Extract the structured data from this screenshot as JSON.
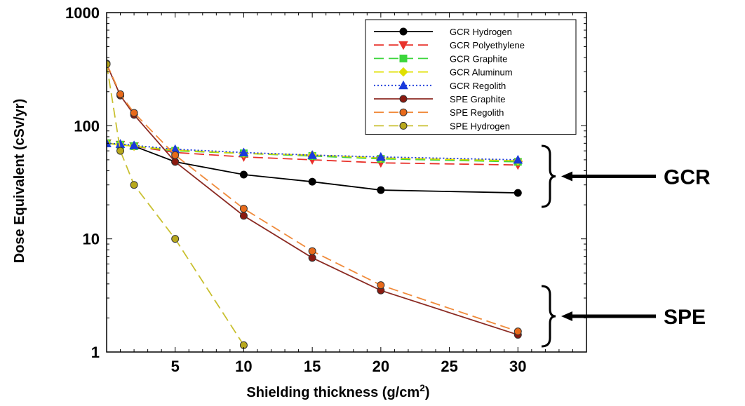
{
  "chart_data": {
    "type": "line",
    "xlabel": "Shielding thickness (g/cm",
    "xlabel_sup": "2",
    "xlabel_end": ")",
    "ylabel": "Dose Equivalent (cSv/yr)",
    "xlim": [
      0,
      35
    ],
    "ylim": [
      1,
      1000
    ],
    "yscale": "log",
    "xticks": [
      5,
      10,
      15,
      20,
      25,
      30
    ],
    "xtick_labels": [
      "5",
      "10",
      "15",
      "20",
      "25",
      "30"
    ],
    "yticks": [
      1,
      10,
      100,
      1000
    ],
    "ytick_labels": [
      "1",
      "10",
      "100",
      "1000"
    ],
    "legend_position": "top-right",
    "series": [
      {
        "name": "GCR Hydrogen",
        "color": "#000000",
        "dash": "solid",
        "marker": "circle",
        "x": [
          0,
          1,
          2,
          5,
          10,
          15,
          20,
          30
        ],
        "y": [
          70,
          68,
          66,
          48,
          37,
          32,
          27,
          25.5
        ]
      },
      {
        "name": "GCR Polyethylene",
        "color": "#e8322b",
        "dash": "dashed",
        "marker": "triangle-down",
        "x": [
          0,
          1,
          2,
          5,
          10,
          15,
          20,
          30
        ],
        "y": [
          70,
          68,
          66,
          58,
          53,
          50,
          47,
          45
        ]
      },
      {
        "name": "GCR Graphite",
        "color": "#3cd63c",
        "dash": "dashed",
        "marker": "square",
        "x": [
          0,
          1,
          2,
          5,
          10,
          15,
          20,
          30
        ],
        "y": [
          70,
          68,
          66,
          60,
          57,
          54,
          51,
          48
        ]
      },
      {
        "name": "GCR Aluminum",
        "color": "#e0e000",
        "dash": "dashed",
        "marker": "diamond",
        "x": [
          0,
          1,
          2,
          5,
          10,
          15,
          20,
          30
        ],
        "y": [
          70,
          68,
          66,
          61,
          57,
          55,
          52,
          49
        ]
      },
      {
        "name": "GCR Regolith",
        "color": "#1a3adb",
        "dash": "dotted",
        "marker": "triangle-up",
        "x": [
          0,
          1,
          2,
          5,
          10,
          15,
          20,
          30
        ],
        "y": [
          70,
          69,
          67,
          62,
          58,
          55,
          53,
          50
        ]
      },
      {
        "name": "SPE Graphite",
        "color": "#8b2a22",
        "dash": "solid",
        "marker": "circle",
        "markerFill": "#8b1a10",
        "x": [
          0,
          1,
          2,
          5,
          10,
          15,
          20,
          30
        ],
        "y": [
          350,
          185,
          125,
          48,
          16,
          6.8,
          3.5,
          1.42
        ]
      },
      {
        "name": "SPE Regolith",
        "color": "#f08a3a",
        "dash": "dashed",
        "marker": "circle",
        "markerFill": "#e86a1a",
        "x": [
          0,
          1,
          2,
          5,
          10,
          15,
          20,
          30
        ],
        "y": [
          355,
          190,
          130,
          55,
          18.5,
          7.8,
          3.9,
          1.52
        ]
      },
      {
        "name": "SPE Hydrogen",
        "color": "#c9c030",
        "dash": "dashed",
        "marker": "circle",
        "markerFill": "#b8a81c",
        "x": [
          0,
          1,
          2,
          5,
          10
        ],
        "y": [
          350,
          60,
          30,
          10,
          1.15
        ]
      }
    ],
    "annotations": [
      {
        "text": "GCR"
      },
      {
        "text": "SPE"
      }
    ]
  }
}
